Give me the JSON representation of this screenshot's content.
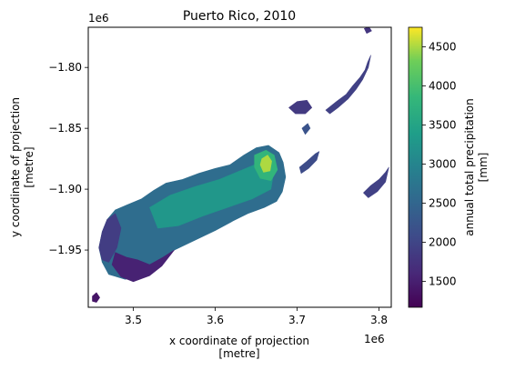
{
  "chart_data": {
    "type": "heatmap",
    "title": "Puerto Rico, 2010",
    "xlabel": [
      "x coordinate of projection",
      "[metre]"
    ],
    "ylabel": [
      "y coordinate of projection",
      "[metre]"
    ],
    "xlim": [
      3.445,
      3.815
    ],
    "ylim": [
      -1.997,
      -1.767
    ],
    "axis_scale_label": "1e6",
    "xticks": [
      {
        "value": 3.5,
        "label": "3.5"
      },
      {
        "value": 3.6,
        "label": "3.6"
      },
      {
        "value": 3.7,
        "label": "3.7"
      },
      {
        "value": 3.8,
        "label": "3.8"
      }
    ],
    "yticks": [
      {
        "value": -1.8,
        "label": "−1.80"
      },
      {
        "value": -1.85,
        "label": "−1.85"
      },
      {
        "value": -1.9,
        "label": "−1.90"
      },
      {
        "value": -1.95,
        "label": "−1.95"
      }
    ],
    "colorbar": {
      "label": "annual total precipitation\n[mm]",
      "min": 1170,
      "max": 4750,
      "ticks": [
        {
          "value": 1500,
          "label": "1500"
        },
        {
          "value": 2000,
          "label": "2000"
        },
        {
          "value": 2500,
          "label": "2500"
        },
        {
          "value": 3000,
          "label": "3000"
        },
        {
          "value": 3500,
          "label": "3500"
        },
        {
          "value": 4000,
          "label": "4000"
        },
        {
          "value": 4500,
          "label": "4500"
        }
      ],
      "colormap": "viridis"
    },
    "regions": [
      {
        "name": "main-island",
        "level": 2600,
        "outline": [
          [
            3.458,
            -1.948
          ],
          [
            3.462,
            -1.935
          ],
          [
            3.468,
            -1.925
          ],
          [
            3.478,
            -1.917
          ],
          [
            3.492,
            -1.913
          ],
          [
            3.51,
            -1.908
          ],
          [
            3.525,
            -1.901
          ],
          [
            3.54,
            -1.895
          ],
          [
            3.56,
            -1.892
          ],
          [
            3.58,
            -1.887
          ],
          [
            3.6,
            -1.883
          ],
          [
            3.618,
            -1.88
          ],
          [
            3.635,
            -1.872
          ],
          [
            3.65,
            -1.866
          ],
          [
            3.665,
            -1.864
          ],
          [
            3.678,
            -1.87
          ],
          [
            3.683,
            -1.878
          ],
          [
            3.686,
            -1.89
          ],
          [
            3.682,
            -1.902
          ],
          [
            3.675,
            -1.91
          ],
          [
            3.66,
            -1.915
          ],
          [
            3.64,
            -1.92
          ],
          [
            3.622,
            -1.926
          ],
          [
            3.6,
            -1.934
          ],
          [
            3.575,
            -1.942
          ],
          [
            3.55,
            -1.95
          ],
          [
            3.532,
            -1.958
          ],
          [
            3.52,
            -1.966
          ],
          [
            3.51,
            -1.972
          ],
          [
            3.49,
            -1.974
          ],
          [
            3.47,
            -1.97
          ],
          [
            3.462,
            -1.96
          ]
        ]
      },
      {
        "name": "south-coast",
        "level": 1550,
        "outline": [
          [
            3.478,
            -1.952
          ],
          [
            3.492,
            -1.956
          ],
          [
            3.505,
            -1.958
          ],
          [
            3.52,
            -1.962
          ],
          [
            3.536,
            -1.956
          ],
          [
            3.55,
            -1.95
          ],
          [
            3.535,
            -1.963
          ],
          [
            3.52,
            -1.971
          ],
          [
            3.5,
            -1.976
          ],
          [
            3.485,
            -1.972
          ],
          [
            3.474,
            -1.962
          ]
        ]
      },
      {
        "name": "west-coast",
        "level": 1900,
        "outline": [
          [
            3.458,
            -1.948
          ],
          [
            3.462,
            -1.935
          ],
          [
            3.468,
            -1.925
          ],
          [
            3.478,
            -1.92
          ],
          [
            3.485,
            -1.932
          ],
          [
            3.48,
            -1.948
          ],
          [
            3.47,
            -1.96
          ],
          [
            3.462,
            -1.958
          ]
        ]
      },
      {
        "name": "central-highlands",
        "level": 3300,
        "outline": [
          [
            3.52,
            -1.915
          ],
          [
            3.545,
            -1.905
          ],
          [
            3.575,
            -1.898
          ],
          [
            3.605,
            -1.892
          ],
          [
            3.63,
            -1.885
          ],
          [
            3.655,
            -1.878
          ],
          [
            3.672,
            -1.884
          ],
          [
            3.668,
            -1.9
          ],
          [
            3.645,
            -1.908
          ],
          [
            3.615,
            -1.915
          ],
          [
            3.585,
            -1.922
          ],
          [
            3.555,
            -1.93
          ],
          [
            3.53,
            -1.932
          ]
        ]
      },
      {
        "name": "el-yunque-outer",
        "level": 3800,
        "outline": [
          [
            3.648,
            -1.872
          ],
          [
            3.662,
            -1.868
          ],
          [
            3.672,
            -1.872
          ],
          [
            3.676,
            -1.884
          ],
          [
            3.668,
            -1.893
          ],
          [
            3.655,
            -1.891
          ],
          [
            3.648,
            -1.882
          ]
        ]
      },
      {
        "name": "el-yunque-peak",
        "level": 4500,
        "outline": [
          [
            3.657,
            -1.875
          ],
          [
            3.664,
            -1.872
          ],
          [
            3.669,
            -1.877
          ],
          [
            3.667,
            -1.885
          ],
          [
            3.659,
            -1.886
          ],
          [
            3.655,
            -1.88
          ]
        ]
      },
      {
        "name": "vieques",
        "level": 2100,
        "outline": [
          [
            3.703,
            -1.882
          ],
          [
            3.712,
            -1.877
          ],
          [
            3.722,
            -1.871
          ],
          [
            3.727,
            -1.869
          ],
          [
            3.724,
            -1.876
          ],
          [
            3.714,
            -1.883
          ],
          [
            3.705,
            -1.887
          ]
        ]
      },
      {
        "name": "culebra",
        "level": 2200,
        "outline": [
          [
            3.706,
            -1.85
          ],
          [
            3.713,
            -1.846
          ],
          [
            3.716,
            -1.85
          ],
          [
            3.71,
            -1.855
          ]
        ]
      },
      {
        "name": "st-thomas-chain",
        "level": 1950,
        "outline": [
          [
            3.735,
            -1.835
          ],
          [
            3.748,
            -1.828
          ],
          [
            3.76,
            -1.822
          ],
          [
            3.768,
            -1.815
          ],
          [
            3.777,
            -1.808
          ],
          [
            3.783,
            -1.802
          ],
          [
            3.786,
            -1.796
          ],
          [
            3.79,
            -1.79
          ],
          [
            3.787,
            -1.8
          ],
          [
            3.78,
            -1.81
          ],
          [
            3.772,
            -1.818
          ],
          [
            3.762,
            -1.826
          ],
          [
            3.75,
            -1.833
          ],
          [
            3.74,
            -1.838
          ]
        ]
      },
      {
        "name": "northwest-fragment",
        "level": 1850,
        "outline": [
          [
            3.69,
            -1.833
          ],
          [
            3.7,
            -1.828
          ],
          [
            3.712,
            -1.827
          ],
          [
            3.718,
            -1.833
          ],
          [
            3.71,
            -1.838
          ],
          [
            3.698,
            -1.838
          ]
        ]
      },
      {
        "name": "st-croix",
        "level": 1950,
        "outline": [
          [
            3.781,
            -1.903
          ],
          [
            3.79,
            -1.897
          ],
          [
            3.8,
            -1.892
          ],
          [
            3.808,
            -1.886
          ],
          [
            3.812,
            -1.882
          ],
          [
            3.808,
            -1.894
          ],
          [
            3.798,
            -1.902
          ],
          [
            3.787,
            -1.907
          ]
        ]
      },
      {
        "name": "mona-island",
        "level": 1400,
        "outline": [
          [
            3.45,
            -1.988
          ],
          [
            3.455,
            -1.985
          ],
          [
            3.459,
            -1.989
          ],
          [
            3.455,
            -1.993
          ],
          [
            3.45,
            -1.992
          ]
        ]
      },
      {
        "name": "far-northeast-islet",
        "level": 1800,
        "outline": [
          [
            3.782,
            -1.768
          ],
          [
            3.788,
            -1.767
          ],
          [
            3.791,
            -1.77
          ],
          [
            3.785,
            -1.772
          ]
        ]
      }
    ]
  }
}
